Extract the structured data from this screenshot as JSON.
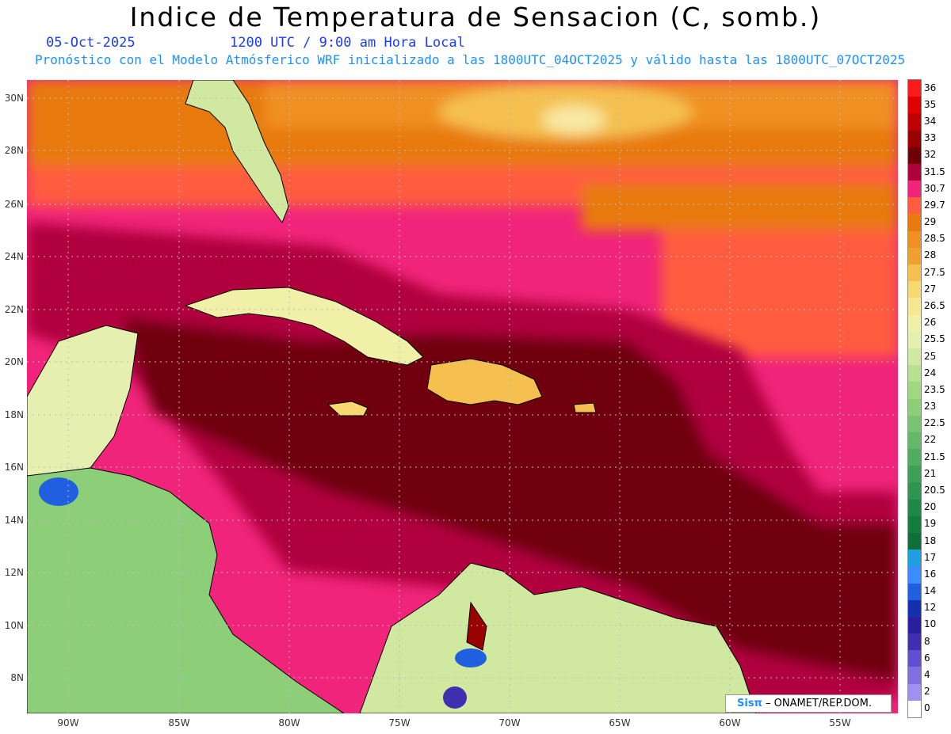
{
  "header": {
    "title": "Indice de Temperatura de Sensacion (C, somb.)",
    "date": "05-Oct-2025",
    "time": "1200 UTC / 9:00 am Hora Local",
    "forecast": "Pronóstico con el Modelo Atmósferico WRF inicializado a las 1800UTC_04OCT2025 y válido hasta las  1800UTC_07OCT2025"
  },
  "map": {
    "lat_labels": [
      "30N",
      "28N",
      "26N",
      "24N",
      "22N",
      "20N",
      "18N",
      "16N",
      "14N",
      "12N",
      "10N",
      "8N"
    ],
    "lon_labels": [
      "90W",
      "85W",
      "80W",
      "75W",
      "70W",
      "65W",
      "60W",
      "55W"
    ],
    "land_color": "#e8f2a0",
    "sea_color": "#7a0010"
  },
  "colorbar": {
    "labels": [
      "36",
      "35",
      "34",
      "33",
      "32",
      "31.5",
      "30.7",
      "29.7",
      "29",
      "28.5",
      "28",
      "27.5",
      "27",
      "26.5",
      "26",
      "25.5",
      "25",
      "24",
      "23.5",
      "23",
      "22.5",
      "22",
      "21.5",
      "21",
      "20.5",
      "20",
      "19",
      "18",
      "17",
      "16",
      "14",
      "12",
      "10",
      "8",
      "6",
      "4",
      "2",
      "0"
    ],
    "colors": [
      "#ff1a1a",
      "#e00000",
      "#c00000",
      "#990000",
      "#700008",
      "#b0003c",
      "#f0247a",
      "#ff5c40",
      "#e87a10",
      "#f09020",
      "#f0a030",
      "#f5c050",
      "#f8d870",
      "#f5e890",
      "#f0f0a8",
      "#e5f0b0",
      "#d0e8a0",
      "#b8e090",
      "#a0d880",
      "#8ccf78",
      "#78c470",
      "#64b868",
      "#50ac60",
      "#3ca058",
      "#2e9450",
      "#1e8848",
      "#147c40",
      "#0e7038",
      "#1ea0e0",
      "#3c8cff",
      "#2060e0",
      "#1430b0",
      "#2820a0",
      "#4030b0",
      "#6050d0",
      "#8070e0",
      "#a090f0",
      "#ffffff"
    ]
  },
  "credit": {
    "brand": "Sisπ",
    "text": "– ONAMET/REP.DOM."
  }
}
